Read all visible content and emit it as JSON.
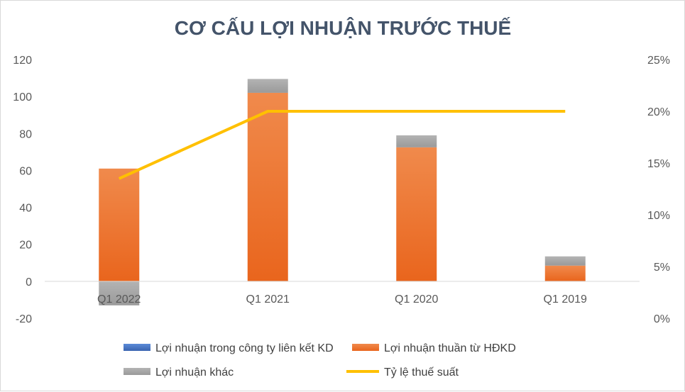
{
  "chart_data": {
    "type": "bar",
    "title": "CƠ CẤU LỢI NHUẬN TRƯỚC THUẾ",
    "categories": [
      "Q1 2022",
      "Q1 2021",
      "Q1 2020",
      "Q1 2019"
    ],
    "series": [
      {
        "name": "Lợi nhuận trong công ty liên kết KD",
        "kind": "stacked-bar",
        "axis": "left",
        "color": "#4472c4",
        "values": [
          0,
          0,
          0,
          0
        ]
      },
      {
        "name": "Lợi nhuận thuần từ HĐKD",
        "kind": "stacked-bar",
        "axis": "left",
        "color": "#ed7d31",
        "values": [
          61,
          102,
          72.5,
          8.5
        ]
      },
      {
        "name": "Lợi nhuận khác",
        "kind": "stacked-bar",
        "axis": "left",
        "color": "#a5a5a5",
        "values": [
          -13,
          7.5,
          6.5,
          5
        ]
      },
      {
        "name": "Tỷ lệ thuế suất",
        "kind": "line",
        "axis": "right",
        "color": "#ffc000",
        "values": [
          13.5,
          20,
          20,
          20
        ]
      }
    ],
    "y_left": {
      "min": -20,
      "max": 120,
      "step": 20,
      "ticks": [
        "-20",
        "0",
        "20",
        "40",
        "60",
        "80",
        "100",
        "120"
      ]
    },
    "y_right": {
      "min": 0,
      "max": 25,
      "step": 5,
      "ticks": [
        "0%",
        "5%",
        "10%",
        "15%",
        "20%",
        "25%"
      ]
    },
    "grid": false,
    "legend_position": "bottom"
  }
}
